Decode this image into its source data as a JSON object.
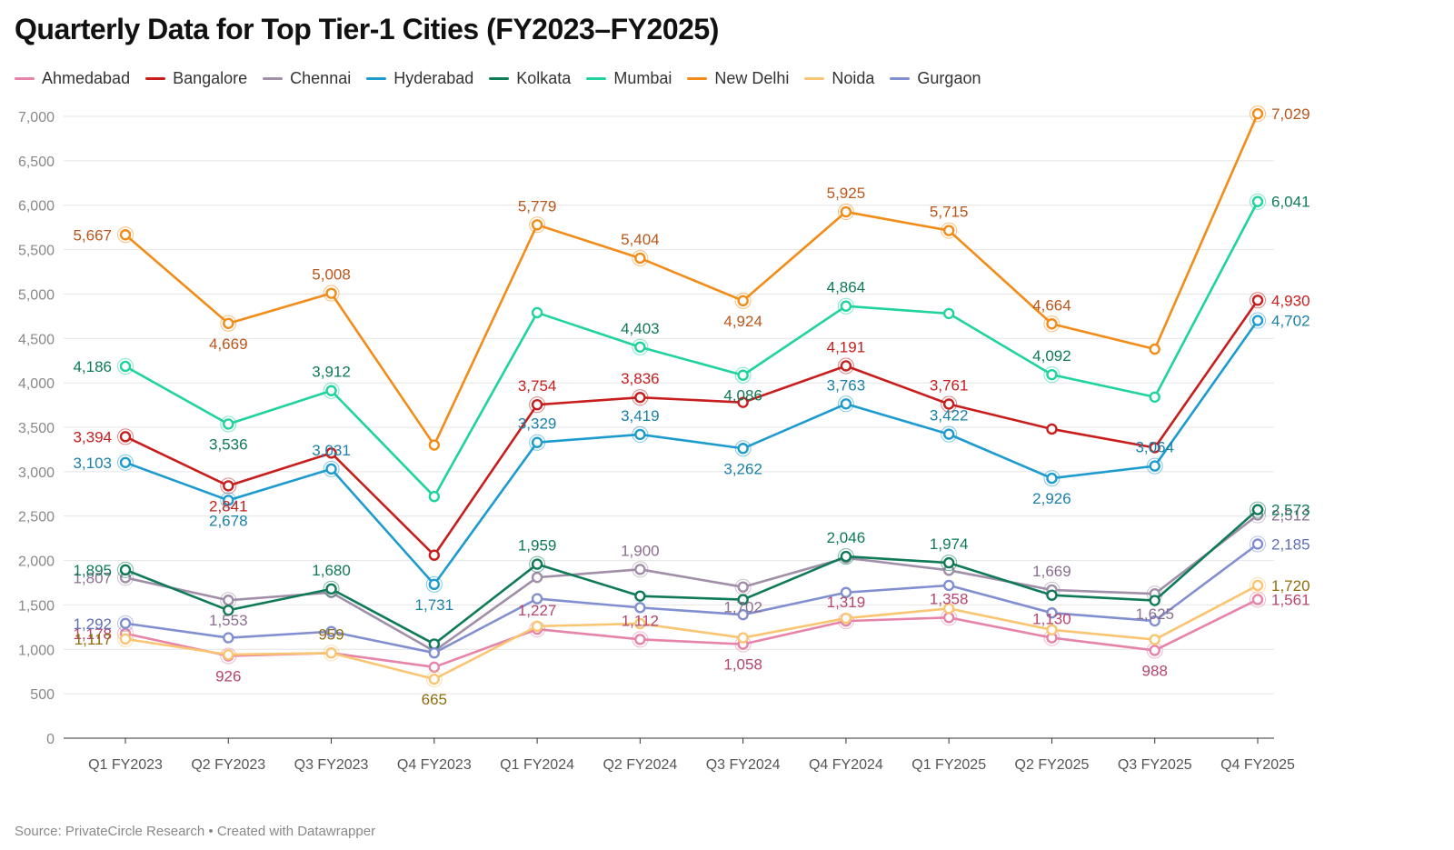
{
  "title": "Quarterly Data for Top Tier-1 Cities (FY2023–FY2025)",
  "footer": "Source: PrivateCircle Research • Created with Datawrapper",
  "chart_data": {
    "type": "line",
    "title": "Quarterly Data for Top Tier-1 Cities (FY2023–FY2025)",
    "xlabel": "",
    "ylabel": "",
    "ylim": [
      0,
      7000
    ],
    "yticks": [
      0,
      500,
      1000,
      1500,
      2000,
      2500,
      3000,
      3500,
      4000,
      4500,
      5000,
      5500,
      6000,
      6500,
      7000
    ],
    "grid": true,
    "legend_position": "top",
    "categories": [
      "Q1 FY2023",
      "Q2 FY2023",
      "Q3 FY2023",
      "Q4 FY2023",
      "Q1 FY2024",
      "Q2 FY2024",
      "Q3 FY2024",
      "Q4 FY2024",
      "Q1 FY2025",
      "Q2 FY2025",
      "Q3 FY2025",
      "Q4 FY2025"
    ],
    "series": [
      {
        "name": "Ahmedabad",
        "color": "#e683a8",
        "label_color": "#b5446e",
        "values": [
          1178,
          926,
          959,
          800,
          1227,
          1112,
          1058,
          1319,
          1358,
          1130,
          988,
          1561
        ],
        "labels": [
          "1,178",
          "926",
          "",
          "",
          "1,227",
          "1,112",
          "1,058",
          "1,319",
          "1,358",
          "1,130",
          "988",
          "1,561"
        ]
      },
      {
        "name": "Bangalore",
        "color": "#c71e1d",
        "label_color": "#c71e1d",
        "values": [
          3394,
          2841,
          3210,
          2060,
          3754,
          3836,
          3780,
          4191,
          3761,
          3480,
          3270,
          4930
        ],
        "labels": [
          "3,394",
          "2,841",
          "",
          "",
          "3,754",
          "3,836",
          "",
          "4,191",
          "3,761",
          "",
          "",
          "4,930"
        ]
      },
      {
        "name": "Chennai",
        "color": "#a18ea8",
        "label_color": "#8a6e8f",
        "values": [
          1807,
          1553,
          1640,
          980,
          1810,
          1900,
          1702,
          2030,
          1890,
          1669,
          1625,
          2512
        ],
        "labels": [
          "1,807",
          "1,553",
          "",
          "",
          "",
          "1,900",
          "1,702",
          "",
          "",
          "1,669",
          "1,625",
          "2,512"
        ]
      },
      {
        "name": "Hyderabad",
        "color": "#1d9bcf",
        "label_color": "#1a80a8",
        "values": [
          3103,
          2678,
          3031,
          1731,
          3329,
          3419,
          3262,
          3763,
          3422,
          2926,
          3064,
          4702
        ],
        "labels": [
          "3,103",
          "2,678",
          "3,031",
          "1,731",
          "3,329",
          "3,419",
          "3,262",
          "3,763",
          "3,422",
          "2,926",
          "3,064",
          "4,702"
        ]
      },
      {
        "name": "Kolkata",
        "color": "#0e7a57",
        "label_color": "#0e7a57",
        "values": [
          1895,
          1440,
          1680,
          1060,
          1959,
          1600,
          1560,
          2046,
          1974,
          1610,
          1550,
          2573
        ],
        "labels": [
          "1,895",
          "",
          "1,680",
          "",
          "1,959",
          "",
          "",
          "2,046",
          "1,974",
          "",
          "",
          "2,573"
        ]
      },
      {
        "name": "Mumbai",
        "color": "#1fd39e",
        "label_color": "#0e7a57",
        "values": [
          4186,
          3536,
          3912,
          2720,
          4790,
          4403,
          4086,
          4864,
          4780,
          4092,
          3840,
          6041
        ],
        "labels": [
          "4,186",
          "3,536",
          "3,912",
          "",
          "",
          "4,403",
          "4,086",
          "4,864",
          "",
          "4,092",
          "",
          "6,041"
        ]
      },
      {
        "name": "New Delhi",
        "color": "#f28c18",
        "label_color": "#b9561a",
        "values": [
          5667,
          4669,
          5008,
          3300,
          5779,
          5404,
          4924,
          5925,
          5715,
          4664,
          4380,
          7029
        ],
        "labels": [
          "5,667",
          "4,669",
          "5,008",
          "",
          "5,779",
          "5,404",
          "4,924",
          "5,925",
          "5,715",
          "4,664",
          "",
          "7,029"
        ]
      },
      {
        "name": "Noida",
        "color": "#f9c572",
        "label_color": "#8f6d10",
        "values": [
          1117,
          940,
          959,
          665,
          1260,
          1290,
          1130,
          1350,
          1460,
          1220,
          1110,
          1720
        ],
        "labels": [
          "1,117",
          "",
          "959",
          "665",
          "",
          "",
          "",
          "",
          "",
          "",
          "",
          "1,720"
        ]
      },
      {
        "name": "Gurgaon",
        "color": "#818fd0",
        "label_color": "#5f6fb5",
        "values": [
          1292,
          1130,
          1200,
          960,
          1570,
          1470,
          1390,
          1640,
          1720,
          1410,
          1320,
          2185
        ],
        "labels": [
          "1,292",
          "",
          "",
          "",
          "",
          "",
          "",
          "",
          "",
          "",
          "",
          "2,185"
        ]
      }
    ]
  }
}
